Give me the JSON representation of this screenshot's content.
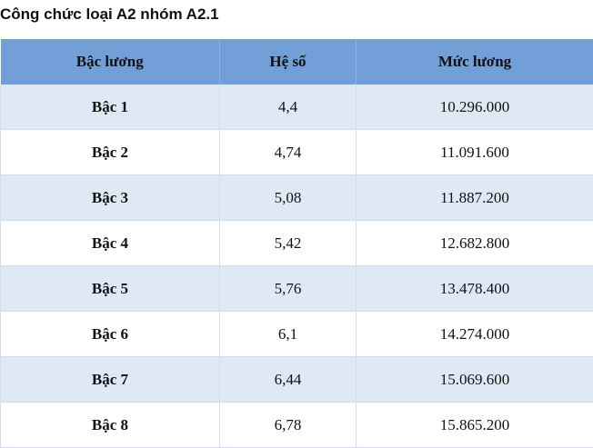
{
  "header": {
    "title": "Công chức loại A2 nhóm A2.1"
  },
  "table": {
    "columns": [
      "Bậc lương",
      "Hệ số",
      "Mức lương"
    ],
    "rows": [
      [
        "Bậc 1",
        "4,4",
        "10.296.000"
      ],
      [
        "Bậc 2",
        "4,74",
        "11.091.600"
      ],
      [
        "Bậc 3",
        "5,08",
        "11.887.200"
      ],
      [
        "Bậc 4",
        "5,42",
        "12.682.800"
      ],
      [
        "Bậc 5",
        "5,76",
        "13.478.400"
      ],
      [
        "Bậc 6",
        "6,1",
        "14.274.000"
      ],
      [
        "Bậc 7",
        "6,44",
        "15.069.600"
      ],
      [
        "Bậc 8",
        "6,78",
        "15.865.200"
      ]
    ]
  }
}
